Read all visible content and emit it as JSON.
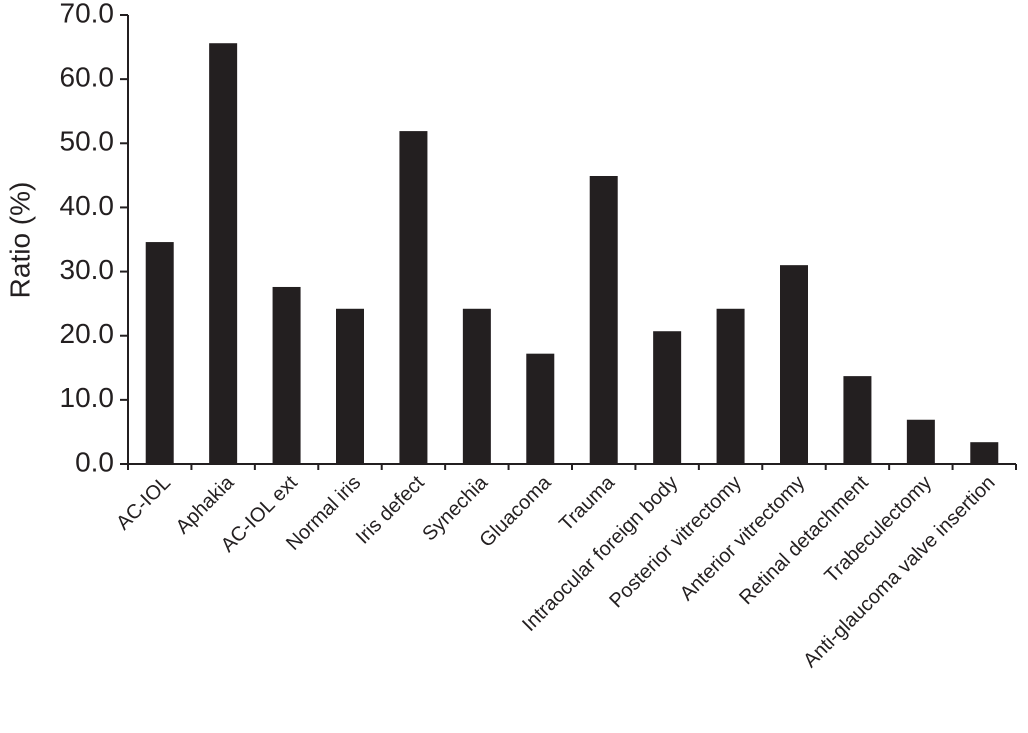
{
  "chart_data": {
    "type": "bar",
    "y_label": "Ratio (%)",
    "categories": [
      "AC-IOL",
      "Aphakia",
      "AC-IOL ext",
      "Normal iris",
      "Iris defect",
      "Synechia",
      "Gluacoma",
      "Trauma",
      "Intraocular foreign body",
      "Posterior vitrectomy",
      "Anterior vitrectomy",
      "Retinal detachment",
      "Trabeculectomy",
      "Anti-glaucoma valve insertion"
    ],
    "values": [
      34.6,
      65.6,
      27.6,
      24.2,
      51.9,
      24.2,
      17.2,
      44.9,
      20.7,
      24.2,
      31.0,
      13.7,
      6.9,
      3.4
    ],
    "color": "#231f20",
    "ylim": [
      0,
      70
    ],
    "yticks": [
      {
        "value": 0,
        "label": "0.0"
      },
      {
        "value": 10,
        "label": "10.0"
      },
      {
        "value": 20,
        "label": "20.0"
      },
      {
        "value": 30,
        "label": "30.0"
      },
      {
        "value": 40,
        "label": "40.0"
      },
      {
        "value": 50,
        "label": "50.0"
      },
      {
        "value": 60,
        "label": "60.0"
      },
      {
        "value": 70,
        "label": "70.0"
      }
    ],
    "grid": false
  }
}
